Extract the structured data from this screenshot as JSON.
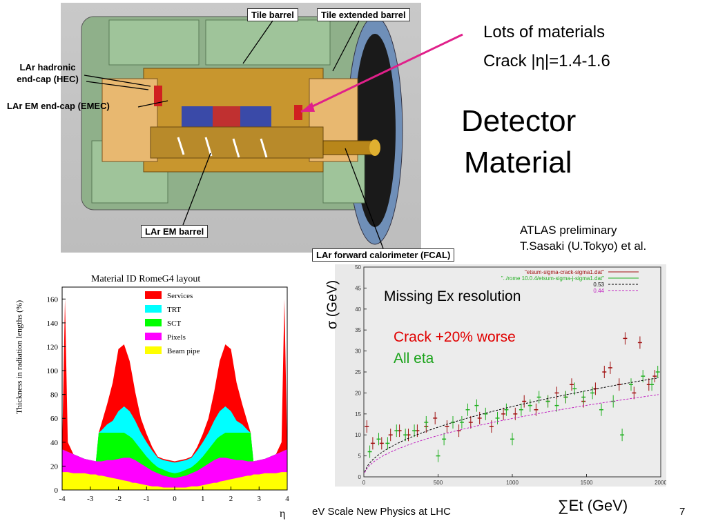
{
  "slide": {
    "title_line1": "Detector",
    "title_line2": "Material",
    "top_note_line1": "Lots of materials",
    "top_note_line2": "Crack |η|=1.4-1.6",
    "credit_line1": "ATLAS preliminary",
    "credit_line2": "T.Sasaki (U.Tokyo) et al.",
    "footer": "eV Scale New Physics at LHC",
    "page_number": "7"
  },
  "detector_labels": {
    "tile_barrel": "Tile barrel",
    "tile_extended_barrel": "Tile extended barrel",
    "lar_hec_line1": "LAr hadronic",
    "lar_hec_line2": "end-cap (HEC)",
    "lar_emec": "LAr EM end-cap (EMEC)",
    "lar_em_barrel": "LAr EM barrel",
    "lar_fcal": "LAr forward calorimeter (FCAL)"
  },
  "colors": {
    "arrow_pink": "#e0208a",
    "services": "#ff0000",
    "trt": "#00ffff",
    "sct": "#00ff00",
    "pixels": "#ff00ff",
    "beam_pipe": "#ffff00",
    "annot_red": "#e00000",
    "annot_green": "#1aa31a"
  },
  "chart_data": [
    {
      "type": "area",
      "title": "Material ID RomeG4 layout",
      "xlabel": "η",
      "ylabel": "Thickness in radiation lengths (%)",
      "xlim": [
        -4,
        4
      ],
      "ylim": [
        0,
        170
      ],
      "x_ticks": [
        "-4",
        "-3",
        "-2",
        "-1",
        "0",
        "1",
        "2",
        "3",
        "4"
      ],
      "y_ticks": [
        "0",
        "20",
        "40",
        "60",
        "80",
        "100",
        "120",
        "140",
        "160"
      ],
      "legend_position": "top-right",
      "x": [
        0,
        0.2,
        0.4,
        0.6,
        0.8,
        1.0,
        1.2,
        1.4,
        1.5,
        1.6,
        1.8,
        2.0,
        2.2,
        2.4,
        2.6,
        2.7,
        2.8,
        3.0,
        3.2,
        3.4,
        3.6,
        3.8,
        3.9,
        4.0
      ],
      "series": [
        {
          "name": "Beam pipe",
          "values": [
            2,
            2,
            2,
            3,
            3,
            4,
            5,
            6,
            6,
            7,
            8,
            9,
            10,
            11,
            12,
            12,
            13,
            13,
            14,
            14,
            14,
            15,
            15,
            15
          ]
        },
        {
          "name": "Pixels",
          "values": [
            10,
            11,
            12,
            14,
            16,
            19,
            22,
            25,
            26,
            27,
            27,
            26,
            25,
            25,
            24,
            24,
            24,
            25,
            26,
            28,
            30,
            32,
            33,
            34
          ]
        },
        {
          "name": "SCT",
          "values": [
            14,
            15,
            17,
            19,
            23,
            28,
            34,
            40,
            43,
            45,
            48,
            48,
            48,
            48,
            48,
            48,
            24,
            25,
            26,
            28,
            30,
            32,
            33,
            34
          ]
        },
        {
          "name": "TRT",
          "values": [
            23,
            24,
            25,
            27,
            33,
            40,
            48,
            58,
            62,
            66,
            70,
            66,
            58,
            55,
            50,
            48,
            24,
            25,
            26,
            28,
            30,
            32,
            33,
            34
          ]
        },
        {
          "name": "Services",
          "values": [
            24,
            25,
            26,
            28,
            36,
            47,
            60,
            82,
            95,
            108,
            122,
            118,
            90,
            72,
            56,
            48,
            24,
            25,
            26,
            28,
            30,
            40,
            160,
            34
          ]
        }
      ]
    },
    {
      "type": "scatter",
      "title": "Missing Ex resolution",
      "xlabel": "∑Et (GeV)",
      "ylabel": "σ (GeV)",
      "xlim": [
        0,
        2000
      ],
      "ylim": [
        0,
        50
      ],
      "x_ticks": [
        "0",
        "500",
        "1000",
        "1500",
        "2000"
      ],
      "y_ticks": [
        "0",
        "5",
        "10",
        "15",
        "20",
        "25",
        "30",
        "35",
        "40",
        "45",
        "50"
      ],
      "legend_position": "top-right",
      "annotations": [
        "Crack +20% worse",
        "All eta"
      ],
      "series": [
        {
          "name": "\"etsum-sigma-crack-sigma1.dat\"",
          "points": [
            [
              20,
              12
            ],
            [
              60,
              8
            ],
            [
              120,
              8
            ],
            [
              180,
              10
            ],
            [
              240,
              11
            ],
            [
              300,
              10
            ],
            [
              360,
              11
            ],
            [
              420,
              12
            ],
            [
              480,
              14
            ],
            [
              560,
              12
            ],
            [
              640,
              11
            ],
            [
              720,
              13
            ],
            [
              780,
              14
            ],
            [
              860,
              12
            ],
            [
              940,
              15
            ],
            [
              1020,
              15
            ],
            [
              1080,
              18
            ],
            [
              1160,
              16
            ],
            [
              1240,
              18
            ],
            [
              1300,
              20
            ],
            [
              1360,
              19
            ],
            [
              1400,
              22
            ],
            [
              1480,
              18
            ],
            [
              1560,
              21
            ],
            [
              1620,
              25
            ],
            [
              1660,
              26
            ],
            [
              1720,
              22
            ],
            [
              1760,
              33
            ],
            [
              1820,
              20
            ],
            [
              1860,
              32
            ],
            [
              1920,
              22
            ],
            [
              1960,
              24
            ]
          ]
        },
        {
          "name": "\"../rome 10.0.4/etsum-sigma-j-sigma1.dat\"",
          "points": [
            [
              40,
              6
            ],
            [
              100,
              9
            ],
            [
              160,
              8
            ],
            [
              220,
              11
            ],
            [
              280,
              10
            ],
            [
              340,
              11
            ],
            [
              420,
              13
            ],
            [
              500,
              5
            ],
            [
              540,
              9
            ],
            [
              600,
              13
            ],
            [
              660,
              13
            ],
            [
              700,
              16
            ],
            [
              760,
              17
            ],
            [
              820,
              15
            ],
            [
              900,
              14
            ],
            [
              960,
              16
            ],
            [
              1000,
              9
            ],
            [
              1060,
              16
            ],
            [
              1120,
              17
            ],
            [
              1180,
              19
            ],
            [
              1240,
              18
            ],
            [
              1300,
              17
            ],
            [
              1360,
              19
            ],
            [
              1420,
              21
            ],
            [
              1480,
              19
            ],
            [
              1540,
              20
            ],
            [
              1600,
              16
            ],
            [
              1680,
              18
            ],
            [
              1740,
              10
            ],
            [
              1800,
              22
            ],
            [
              1880,
              24
            ],
            [
              1940,
              22
            ],
            [
              1980,
              25
            ]
          ]
        },
        {
          "name": "0.53",
          "fit_coefficient": 0.53,
          "style": "dashed"
        },
        {
          "name": "0.44",
          "fit_coefficient": 0.44,
          "style": "dashed"
        }
      ]
    }
  ]
}
